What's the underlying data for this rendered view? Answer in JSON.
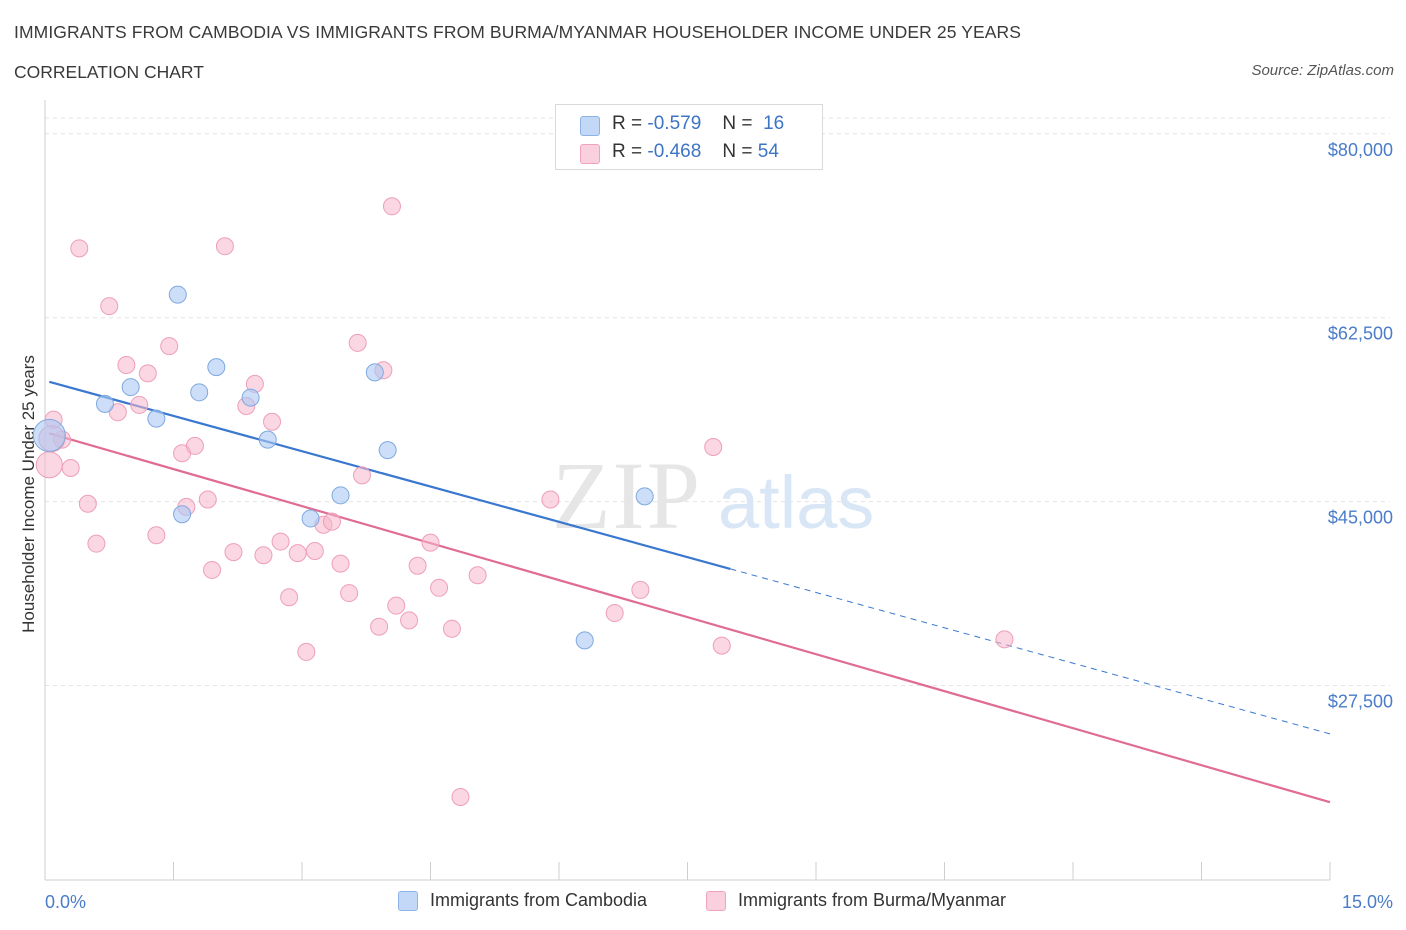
{
  "header": {
    "title": "IMMIGRANTS FROM CAMBODIA VS IMMIGRANTS FROM BURMA/MYANMAR HOUSEHOLDER INCOME UNDER 25 YEARS",
    "subtitle": "CORRELATION CHART",
    "source": "Source: ZipAtlas.com"
  },
  "legend": {
    "cambodia": {
      "r_label": "R =",
      "r_value": "-0.579",
      "n_label": "N =",
      "n_value": "16"
    },
    "burma": {
      "r_label": "R =",
      "r_value": "-0.468",
      "n_label": "N =",
      "n_value": "54"
    }
  },
  "watermark": {
    "zip": "ZIP",
    "atlas": "atlas"
  },
  "chart_data": {
    "type": "scatter",
    "title": "IMMIGRANTS FROM CAMBODIA VS IMMIGRANTS FROM BURMA/MYANMAR HOUSEHOLDER INCOME UNDER 25 YEARS",
    "ylabel": "Householder Income Under 25 years",
    "xlabel": "",
    "xlim": [
      0,
      15
    ],
    "ylim": [
      9000,
      81500
    ],
    "x_tick_labels": [
      "0.0%",
      "15.0%"
    ],
    "y_ticks": [
      80000,
      62500,
      45000,
      27500
    ],
    "y_tick_labels": [
      "$80,000",
      "$62,500",
      "$45,000",
      "$27,500"
    ],
    "colors": {
      "cambodia": "#aac8f3",
      "cambodia_line": "#3a78d0",
      "burma": "#f6b6cb",
      "burma_line": "#e06c93"
    },
    "series": [
      {
        "name": "Immigrants from Cambodia",
        "points": [
          [
            0.05,
            51.3
          ],
          [
            0.7,
            54.3
          ],
          [
            1.0,
            55.9
          ],
          [
            1.3,
            52.9
          ],
          [
            1.6,
            43.8
          ],
          [
            1.55,
            64.7
          ],
          [
            1.8,
            55.4
          ],
          [
            2.0,
            57.8
          ],
          [
            2.4,
            54.9
          ],
          [
            2.6,
            50.9
          ],
          [
            3.1,
            43.4
          ],
          [
            3.45,
            45.6
          ],
          [
            3.85,
            57.3
          ],
          [
            4.0,
            49.9
          ],
          [
            7.0,
            45.5
          ],
          [
            6.3,
            31.8
          ]
        ],
        "trend": {
          "x0": 0.05,
          "y0": 56.4,
          "x1": 8.0,
          "y1": 38.6,
          "dash_to_x": 15.0,
          "dash_to_y": 22.9
        }
      },
      {
        "name": "Immigrants from Burma/Myanmar",
        "points": [
          [
            0.05,
            48.5
          ],
          [
            0.1,
            52.8
          ],
          [
            0.2,
            50.9
          ],
          [
            0.3,
            48.2
          ],
          [
            0.4,
            69.1
          ],
          [
            0.5,
            44.8
          ],
          [
            0.6,
            41.0
          ],
          [
            0.75,
            63.6
          ],
          [
            0.85,
            53.5
          ],
          [
            0.95,
            58.0
          ],
          [
            1.1,
            54.2
          ],
          [
            1.2,
            57.2
          ],
          [
            1.3,
            41.8
          ],
          [
            1.45,
            59.8
          ],
          [
            1.6,
            49.6
          ],
          [
            1.65,
            44.5
          ],
          [
            1.75,
            50.3
          ],
          [
            1.9,
            45.2
          ],
          [
            1.95,
            38.5
          ],
          [
            2.1,
            69.3
          ],
          [
            2.2,
            40.2
          ],
          [
            2.35,
            54.1
          ],
          [
            2.45,
            56.2
          ],
          [
            2.55,
            39.9
          ],
          [
            2.65,
            52.6
          ],
          [
            2.75,
            41.2
          ],
          [
            2.85,
            35.9
          ],
          [
            2.95,
            40.1
          ],
          [
            3.05,
            30.7
          ],
          [
            3.15,
            40.3
          ],
          [
            3.25,
            42.8
          ],
          [
            3.35,
            43.1
          ],
          [
            3.45,
            39.1
          ],
          [
            3.55,
            36.3
          ],
          [
            3.65,
            60.1
          ],
          [
            3.7,
            47.5
          ],
          [
            3.9,
            33.1
          ],
          [
            3.95,
            57.5
          ],
          [
            4.05,
            73.1
          ],
          [
            4.1,
            35.1
          ],
          [
            4.25,
            33.7
          ],
          [
            4.35,
            38.9
          ],
          [
            4.5,
            41.1
          ],
          [
            4.6,
            36.8
          ],
          [
            4.75,
            32.9
          ],
          [
            4.85,
            16.9
          ],
          [
            5.05,
            38.0
          ],
          [
            5.9,
            45.2
          ],
          [
            6.65,
            34.4
          ],
          [
            6.95,
            36.6
          ],
          [
            7.8,
            50.2
          ],
          [
            7.9,
            31.3
          ],
          [
            11.2,
            31.9
          ],
          [
            0.08,
            51.0
          ]
        ],
        "trend": {
          "x0": 0.05,
          "y0": 51.5,
          "x1": 15.0,
          "y1": 16.4
        }
      }
    ]
  },
  "bottom_legend": {
    "cambodia_label": "Immigrants from Cambodia",
    "burma_label": "Immigrants from Burma/Myanmar"
  }
}
